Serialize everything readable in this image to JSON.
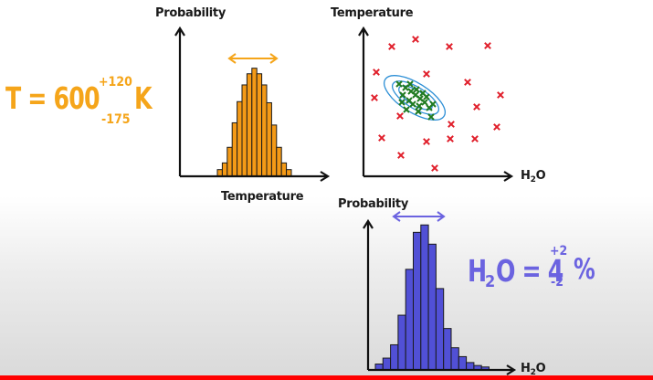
{
  "colors": {
    "temperature_accent": "#f5a51a",
    "h2o_accent": "#6b63e0",
    "histogram_orange": "#f49a17",
    "histogram_blue": "#5150d6",
    "scatter_red": "#e01e2a",
    "scatter_green": "#1f7a1f",
    "contour_blue": "#2d8fd6"
  },
  "temp_histogram": {
    "ylabel": "Probability",
    "xlabel": "Temperature",
    "bars": [
      0.06,
      0.12,
      0.26,
      0.48,
      0.67,
      0.82,
      0.92,
      0.97,
      0.92,
      0.82,
      0.66,
      0.46,
      0.26,
      0.12,
      0.06
    ]
  },
  "scatter": {
    "ylabel": "Temperature",
    "xlabel_main": "H",
    "xlabel_sub": "2",
    "xlabel_tail": "O"
  },
  "h2o_histogram": {
    "ylabel": "Probability",
    "xlabel_main": "H",
    "xlabel_sub": "2",
    "xlabel_tail": "O",
    "bars": [
      0.04,
      0.08,
      0.17,
      0.37,
      0.68,
      0.93,
      0.98,
      0.85,
      0.55,
      0.28,
      0.15,
      0.09,
      0.05,
      0.03,
      0.02
    ]
  },
  "temperature_result": {
    "lhs": "T = 600",
    "plus": "+120",
    "minus": "-175",
    "unit": "K"
  },
  "h2o_result": {
    "h": "H",
    "sub": "2",
    "rest": "O = 4",
    "plus": "+2",
    "minus": "-2",
    "unit": "%"
  }
}
